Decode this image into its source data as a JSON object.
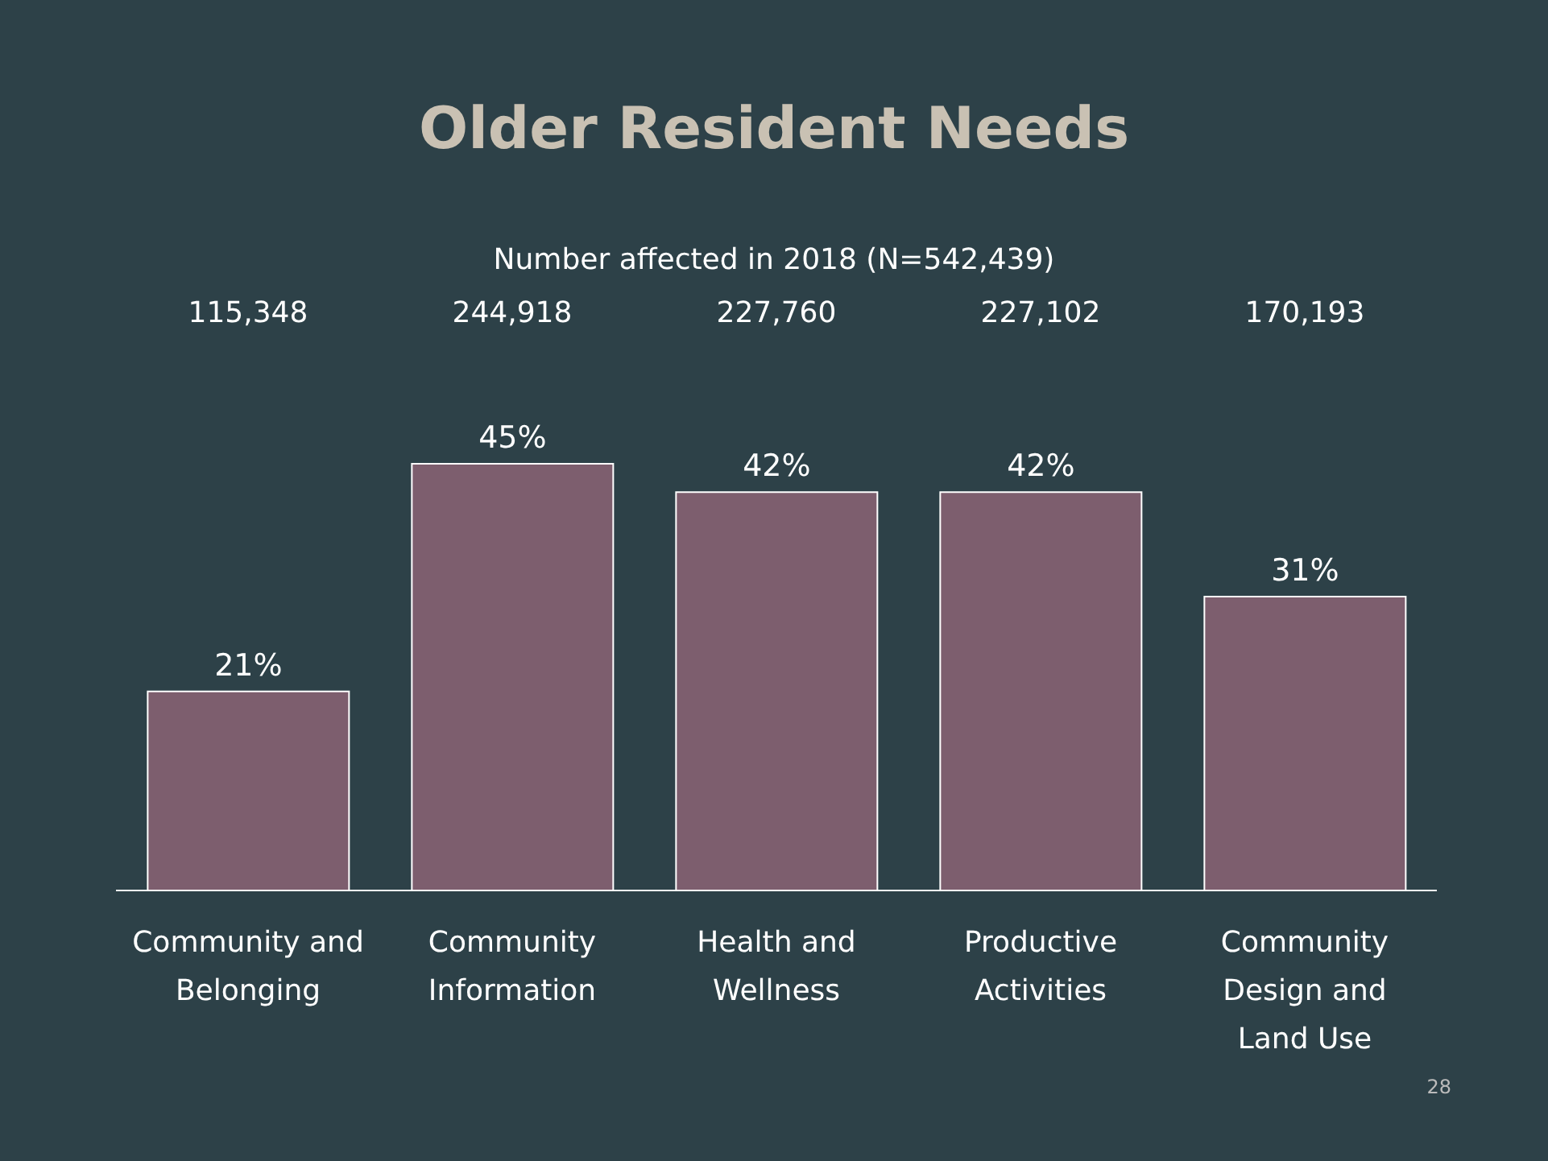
{
  "chart_data": {
    "type": "bar",
    "title": "Older Resident Needs",
    "subtitle": "Number affected in 2018 (N=542,439)",
    "categories": [
      "Community and Belonging",
      "Community Information",
      "Health and Wellness",
      "Productive Activities",
      "Community Design and Land Use"
    ],
    "values": [
      21,
      45,
      42,
      42,
      31
    ],
    "value_labels": [
      "21%",
      "45%",
      "42%",
      "42%",
      "31%"
    ],
    "color": "#7d5e6e",
    "annotations": [
      "115,348",
      "244,918",
      "227,760",
      "227,102",
      "170,193",
      "28"
    ],
    "grid": false,
    "legend": false
  }
}
